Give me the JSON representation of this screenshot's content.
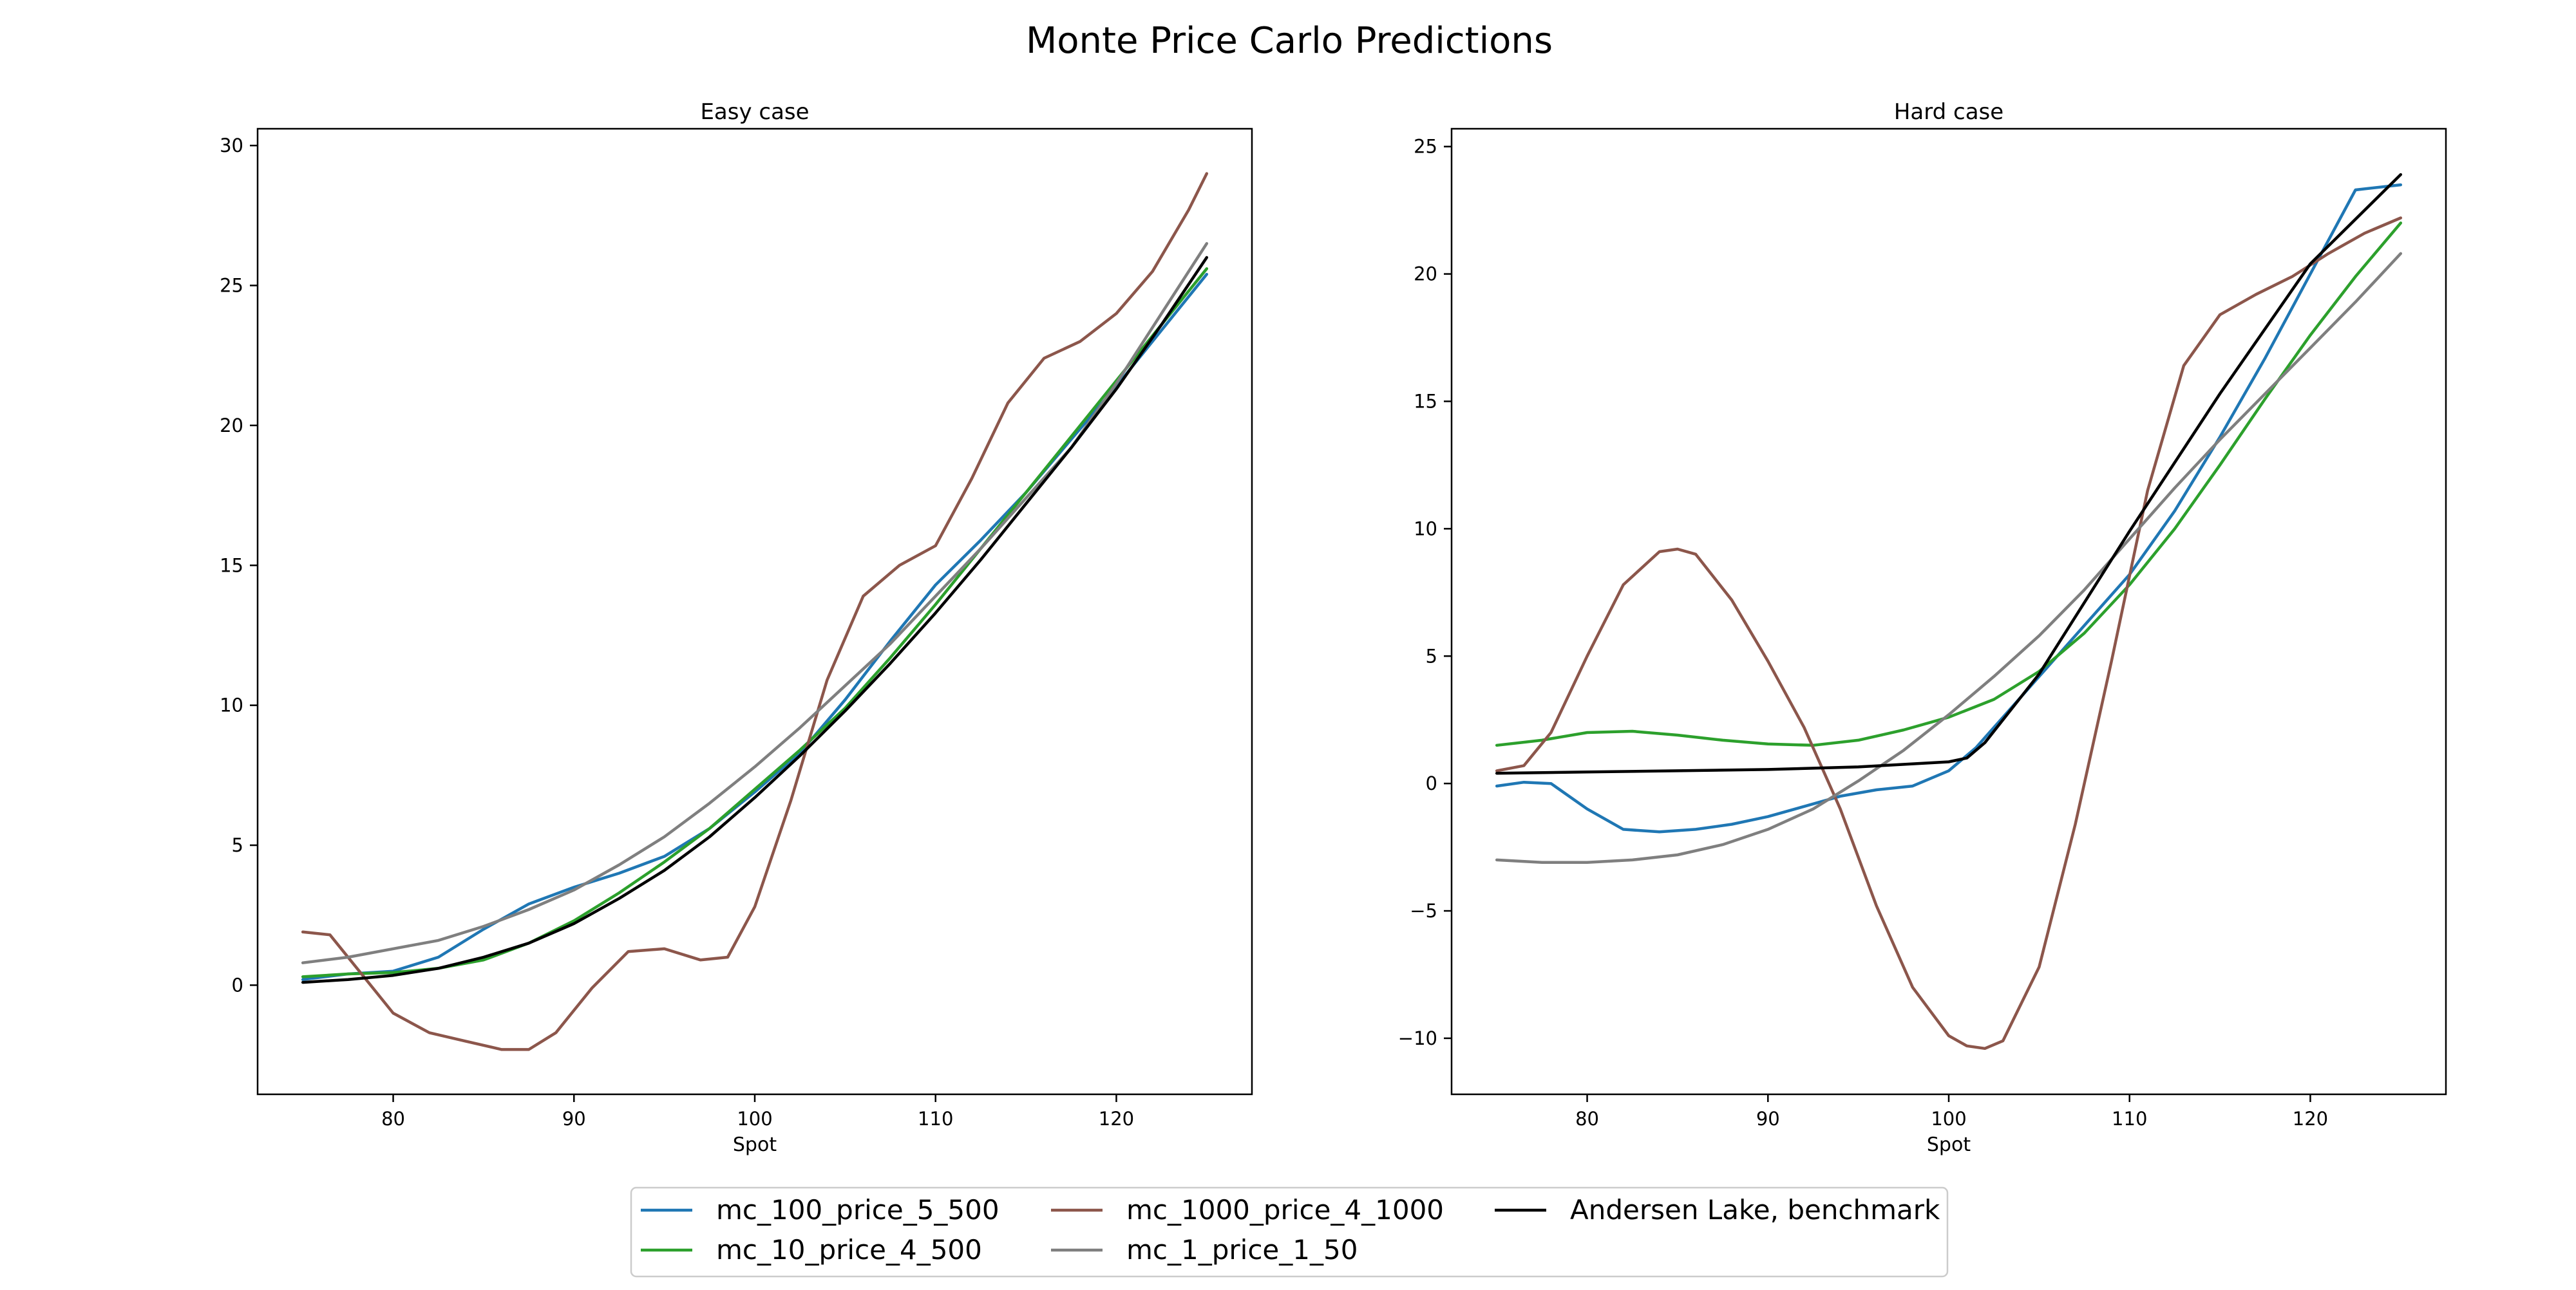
{
  "figure": {
    "title": "Monte Price Carlo Predictions"
  },
  "legend": {
    "placement": "bottom-center",
    "entries": [
      {
        "label": "mc_100_price_5_500",
        "color": "#1f77b4"
      },
      {
        "label": "mc_10_price_4_500",
        "color": "#2ca02c"
      },
      {
        "label": "mc_1000_price_4_1000",
        "color": "#8c564b"
      },
      {
        "label": "mc_1_price_1_50",
        "color": "#7f7f7f"
      },
      {
        "label": "Andersen Lake, benchmark",
        "color": "#000000"
      }
    ]
  },
  "chart_data": [
    {
      "type": "line",
      "title": "Easy case",
      "xlabel": "Spot",
      "ylabel": "",
      "xlim": [
        72.5,
        127.5
      ],
      "ylim": [
        -3.9,
        30.6
      ],
      "xticks": [
        80,
        90,
        100,
        110,
        120
      ],
      "yticks": [
        0,
        5,
        10,
        15,
        20,
        25,
        30
      ],
      "grid": false,
      "series": [
        {
          "name": "mc_100_price_5_500",
          "color": "#1f77b4",
          "x": [
            75,
            77.5,
            80,
            82.5,
            85,
            87.5,
            90,
            92.5,
            95,
            97.5,
            100,
            102.5,
            105,
            107.5,
            110,
            112.5,
            115,
            117.5,
            120,
            122.5,
            125
          ],
          "y": [
            0.2,
            0.4,
            0.5,
            1.0,
            2.0,
            2.9,
            3.5,
            4.0,
            4.6,
            5.6,
            6.9,
            8.3,
            10.2,
            12.3,
            14.3,
            15.9,
            17.6,
            19.5,
            21.4,
            23.4,
            25.4
          ]
        },
        {
          "name": "mc_10_price_4_500",
          "color": "#2ca02c",
          "x": [
            75,
            77.5,
            80,
            82.5,
            85,
            87.5,
            90,
            92.5,
            95,
            97.5,
            100,
            102.5,
            105,
            107.5,
            110,
            112.5,
            115,
            117.5,
            120,
            122.5,
            125
          ],
          "y": [
            0.3,
            0.4,
            0.45,
            0.6,
            0.9,
            1.5,
            2.3,
            3.3,
            4.4,
            5.6,
            7.0,
            8.4,
            9.9,
            11.7,
            13.6,
            15.6,
            17.6,
            19.6,
            21.6,
            23.6,
            25.6
          ]
        },
        {
          "name": "mc_1000_price_4_1000",
          "color": "#8c564b",
          "x": [
            75,
            76.5,
            78,
            80,
            82,
            84,
            86,
            87.5,
            89,
            91,
            93,
            95,
            97,
            98.5,
            100,
            102,
            104,
            106,
            108,
            110,
            112,
            114,
            116,
            118,
            120,
            122,
            124,
            125
          ],
          "y": [
            1.9,
            1.8,
            0.6,
            -1.0,
            -1.7,
            -2.0,
            -2.3,
            -2.3,
            -1.7,
            -0.1,
            1.2,
            1.3,
            0.9,
            1.0,
            2.8,
            6.6,
            10.9,
            13.9,
            15.0,
            15.7,
            18.1,
            20.8,
            22.4,
            23.0,
            24.0,
            25.5,
            27.7,
            29.0
          ]
        },
        {
          "name": "mc_1_price_1_50",
          "color": "#7f7f7f",
          "x": [
            75,
            77.5,
            80,
            82.5,
            85,
            87.5,
            90,
            92.5,
            95,
            97.5,
            100,
            102.5,
            105,
            107.5,
            110,
            112.5,
            115,
            117.5,
            120,
            122.5,
            125
          ],
          "y": [
            0.8,
            1.0,
            1.3,
            1.6,
            2.1,
            2.7,
            3.4,
            4.3,
            5.3,
            6.5,
            7.8,
            9.2,
            10.7,
            12.2,
            13.9,
            15.6,
            17.4,
            19.2,
            21.5,
            24.0,
            26.5
          ]
        },
        {
          "name": "Andersen Lake, benchmark",
          "color": "#000000",
          "x": [
            75,
            77.5,
            80,
            82.5,
            85,
            87.5,
            90,
            92.5,
            95,
            97.5,
            100,
            102.5,
            105,
            107.5,
            110,
            112.5,
            115,
            117.5,
            120,
            122.5,
            125
          ],
          "y": [
            0.1,
            0.2,
            0.35,
            0.6,
            1.0,
            1.5,
            2.2,
            3.1,
            4.1,
            5.3,
            6.7,
            8.2,
            9.8,
            11.5,
            13.3,
            15.2,
            17.2,
            19.2,
            21.3,
            23.6,
            26.0
          ]
        }
      ]
    },
    {
      "type": "line",
      "title": "Hard case",
      "xlabel": "Spot",
      "ylabel": "",
      "xlim": [
        72.5,
        127.5
      ],
      "ylim": [
        -12.2,
        25.7
      ],
      "xticks": [
        80,
        90,
        100,
        110,
        120
      ],
      "yticks": [
        -10,
        -5,
        0,
        5,
        10,
        15,
        20,
        25
      ],
      "grid": false,
      "series": [
        {
          "name": "mc_100_price_5_500",
          "color": "#1f77b4",
          "x": [
            75,
            76.5,
            78,
            80,
            82,
            84,
            86,
            88,
            90,
            92,
            94,
            96,
            98,
            100,
            101.5,
            103,
            105,
            107.5,
            110,
            112.5,
            115,
            117.5,
            120,
            122.5,
            125
          ],
          "y": [
            -0.1,
            0.05,
            0.0,
            -1.0,
            -1.8,
            -1.9,
            -1.8,
            -1.6,
            -1.3,
            -0.9,
            -0.5,
            -0.25,
            -0.1,
            0.5,
            1.4,
            2.6,
            4.2,
            6.2,
            8.2,
            10.7,
            13.6,
            16.7,
            20.0,
            23.3,
            23.5
          ]
        },
        {
          "name": "mc_10_price_4_500",
          "color": "#2ca02c",
          "x": [
            75,
            77.5,
            80,
            82.5,
            85,
            87.5,
            90,
            92.5,
            95,
            97.5,
            100,
            102.5,
            105,
            107.5,
            110,
            112.5,
            115,
            117.5,
            120,
            122.5,
            125
          ],
          "y": [
            1.5,
            1.7,
            2.0,
            2.05,
            1.9,
            1.7,
            1.55,
            1.5,
            1.7,
            2.1,
            2.6,
            3.3,
            4.4,
            5.9,
            7.8,
            10.0,
            12.5,
            15.1,
            17.6,
            19.9,
            22.0
          ]
        },
        {
          "name": "mc_1000_price_4_1000",
          "color": "#8c564b",
          "x": [
            75,
            76.5,
            78,
            80,
            82,
            84,
            85,
            86,
            88,
            90,
            92,
            94,
            96,
            98,
            100,
            101,
            102,
            103,
            105,
            107,
            109,
            111,
            113,
            115,
            117,
            119,
            121,
            123,
            125
          ],
          "y": [
            0.5,
            0.7,
            2.0,
            5.0,
            7.8,
            9.1,
            9.2,
            9.0,
            7.2,
            4.8,
            2.2,
            -1.0,
            -4.8,
            -8.0,
            -9.9,
            -10.3,
            -10.4,
            -10.1,
            -7.2,
            -1.6,
            4.8,
            11.5,
            16.4,
            18.4,
            19.2,
            19.9,
            20.8,
            21.6,
            22.2
          ]
        },
        {
          "name": "mc_1_price_1_50",
          "color": "#7f7f7f",
          "x": [
            75,
            77.5,
            80,
            82.5,
            85,
            87.5,
            90,
            92.5,
            95,
            97.5,
            100,
            102.5,
            105,
            107.5,
            110,
            112.5,
            115,
            117.5,
            120,
            122.5,
            125
          ],
          "y": [
            -3.0,
            -3.1,
            -3.1,
            -3.0,
            -2.8,
            -2.4,
            -1.8,
            -1.0,
            0.1,
            1.3,
            2.7,
            4.2,
            5.8,
            7.6,
            9.6,
            11.6,
            13.5,
            15.3,
            17.1,
            18.9,
            20.8
          ]
        },
        {
          "name": "Andersen Lake, benchmark",
          "color": "#000000",
          "x": [
            75,
            80,
            85,
            90,
            95,
            100,
            101,
            102,
            105,
            110,
            115,
            120,
            125
          ],
          "y": [
            0.4,
            0.45,
            0.5,
            0.55,
            0.65,
            0.85,
            1.0,
            1.6,
            4.3,
            9.9,
            15.3,
            20.4,
            23.9
          ]
        }
      ]
    }
  ]
}
